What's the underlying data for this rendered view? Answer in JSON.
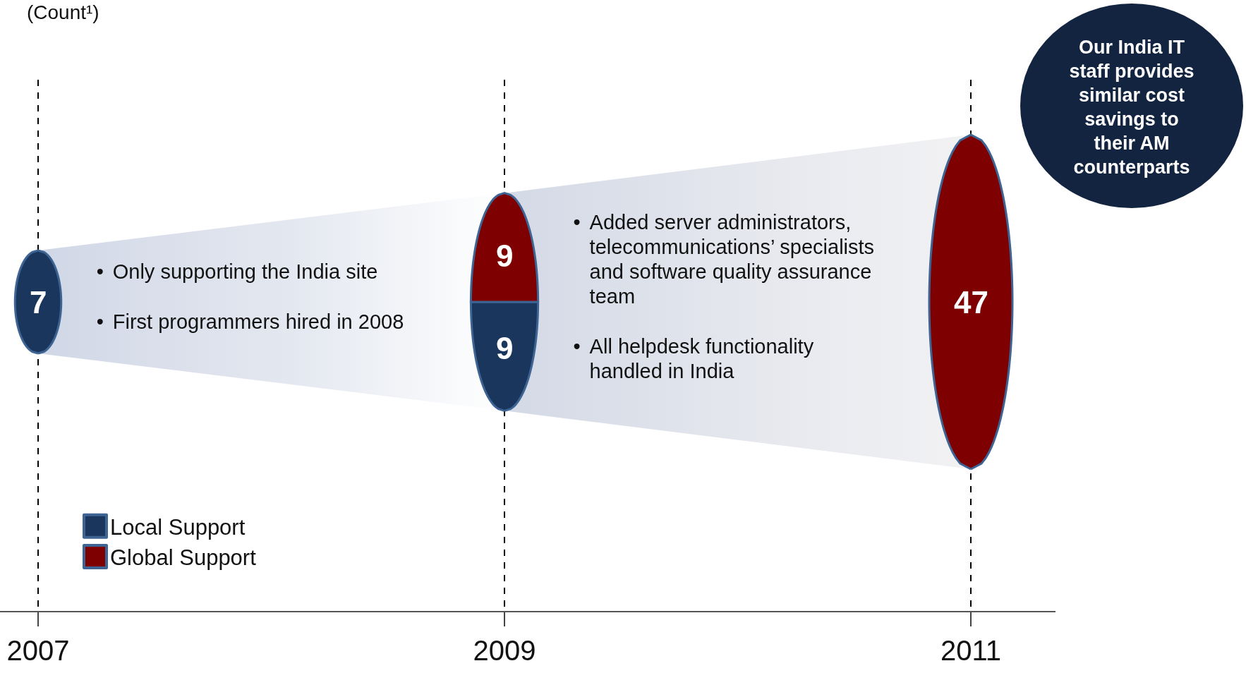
{
  "chart_data": {
    "type": "other",
    "ylabel": "(Count¹)",
    "categories": [
      "2007",
      "2009",
      "2011"
    ],
    "series": [
      {
        "name": "Local Support",
        "color": "#1a365d",
        "values": [
          7,
          9,
          null
        ]
      },
      {
        "name": "Global Support",
        "color": "#7f0000",
        "values": [
          null,
          9,
          47
        ]
      }
    ],
    "data_labels": true,
    "legend": "bottom left",
    "annotations": [
      "• Only supporting the India site",
      "• First programmers hired in 2008",
      "• Added server administrators, telecommunications’ specialists and software quality assurance team",
      "• All helpdesk functionality handled in India",
      "Our India IT staff provides similar cost savings to their AM counterparts"
    ]
  }
}
